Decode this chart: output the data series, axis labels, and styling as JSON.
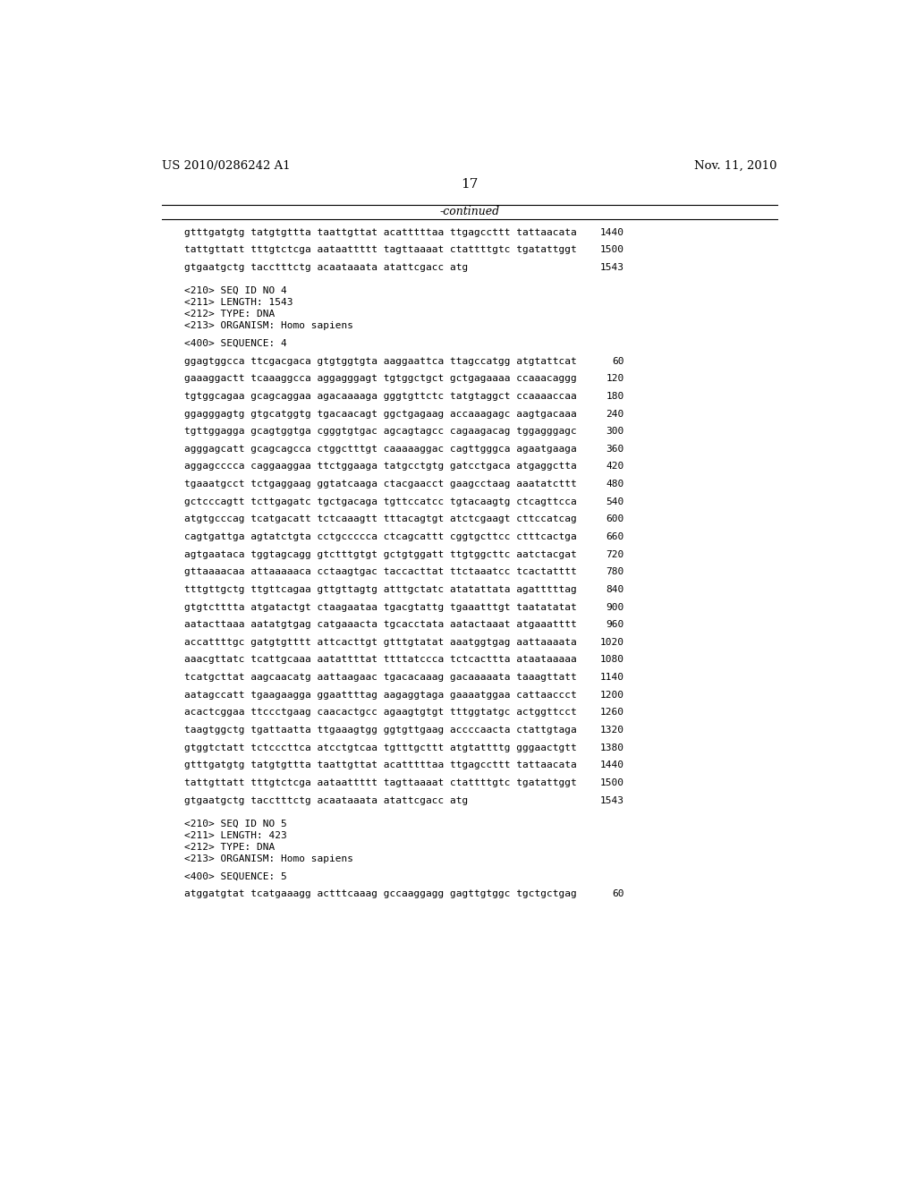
{
  "background_color": "#ffffff",
  "header_left": "US 2010/0286242 A1",
  "header_right": "Nov. 11, 2010",
  "page_number": "17",
  "continued_label": "-continued",
  "lines": [
    {
      "text": "gtttgatgtg tatgtgttta taattgttat acatttttaa ttgagccttt tattaacata",
      "num": "1440"
    },
    {
      "text": "",
      "num": ""
    },
    {
      "text": "tattgttatt tttgtctcga aataattttt tagttaaaat ctattttgtc tgatattggt",
      "num": "1500"
    },
    {
      "text": "",
      "num": ""
    },
    {
      "text": "gtgaatgctg tacctttctg acaataaata atattcgacc atg",
      "num": "1543"
    },
    {
      "text": "",
      "num": ""
    },
    {
      "text": "",
      "num": ""
    },
    {
      "text": "<210> SEQ ID NO 4",
      "num": ""
    },
    {
      "text": "<211> LENGTH: 1543",
      "num": ""
    },
    {
      "text": "<212> TYPE: DNA",
      "num": ""
    },
    {
      "text": "<213> ORGANISM: Homo sapiens",
      "num": ""
    },
    {
      "text": "",
      "num": ""
    },
    {
      "text": "<400> SEQUENCE: 4",
      "num": ""
    },
    {
      "text": "",
      "num": ""
    },
    {
      "text": "ggagtggcca ttcgacgaca gtgtggtgta aaggaattca ttagccatgg atgtattcat",
      "num": "60"
    },
    {
      "text": "",
      "num": ""
    },
    {
      "text": "gaaaggactt tcaaaggcca aggagggagt tgtggctgct gctgagaaaa ccaaacaggg",
      "num": "120"
    },
    {
      "text": "",
      "num": ""
    },
    {
      "text": "tgtggcagaa gcagcaggaa agacaaaaga gggtgttctc tatgtaggct ccaaaaccaa",
      "num": "180"
    },
    {
      "text": "",
      "num": ""
    },
    {
      "text": "ggagggagtg gtgcatggtg tgacaacagt ggctgagaag accaaagagc aagtgacaaa",
      "num": "240"
    },
    {
      "text": "",
      "num": ""
    },
    {
      "text": "tgttggagga gcagtggtga cgggtgtgac agcagtagcc cagaagacag tggagggagc",
      "num": "300"
    },
    {
      "text": "",
      "num": ""
    },
    {
      "text": "agggagcatt gcagcagcca ctggctttgt caaaaaggac cagttgggca agaatgaaga",
      "num": "360"
    },
    {
      "text": "",
      "num": ""
    },
    {
      "text": "aggagcccca caggaaggaa ttctggaaga tatgcctgtg gatcctgaca atgaggctta",
      "num": "420"
    },
    {
      "text": "",
      "num": ""
    },
    {
      "text": "tgaaatgcct tctgaggaag ggtatcaaga ctacgaacct gaagcctaag aaatatcttt",
      "num": "480"
    },
    {
      "text": "",
      "num": ""
    },
    {
      "text": "gctcccagtt tcttgagatc tgctgacaga tgttccatcc tgtacaagtg ctcagttcca",
      "num": "540"
    },
    {
      "text": "",
      "num": ""
    },
    {
      "text": "atgtgcccag tcatgacatt tctcaaagtt tttacagtgt atctcgaagt cttccatcag",
      "num": "600"
    },
    {
      "text": "",
      "num": ""
    },
    {
      "text": "cagtgattga agtatctgta cctgccccca ctcagcattt cggtgcttcc ctttcactga",
      "num": "660"
    },
    {
      "text": "",
      "num": ""
    },
    {
      "text": "agtgaataca tggtagcagg gtctttgtgt gctgtggatt ttgtggcttc aatctacgat",
      "num": "720"
    },
    {
      "text": "",
      "num": ""
    },
    {
      "text": "gttaaaacaa attaaaaaca cctaagtgac taccacttat ttctaaatcc tcactatttt",
      "num": "780"
    },
    {
      "text": "",
      "num": ""
    },
    {
      "text": "tttgttgctg ttgttcagaa gttgttagtg atttgctatc atatattata agatttttag",
      "num": "840"
    },
    {
      "text": "",
      "num": ""
    },
    {
      "text": "gtgtctttta atgatactgt ctaagaataa tgacgtattg tgaaatttgt taatatatat",
      "num": "900"
    },
    {
      "text": "",
      "num": ""
    },
    {
      "text": "aatacttaaa aatatgtgag catgaaacta tgcacctata aatactaaat atgaaatttt",
      "num": "960"
    },
    {
      "text": "",
      "num": ""
    },
    {
      "text": "accattttgc gatgtgtttt attcacttgt gtttgtatat aaatggtgag aattaaaata",
      "num": "1020"
    },
    {
      "text": "",
      "num": ""
    },
    {
      "text": "aaacgttatc tcattgcaaa aatattttat ttttatccca tctcacttta ataataaaaa",
      "num": "1080"
    },
    {
      "text": "",
      "num": ""
    },
    {
      "text": "tcatgcttat aagcaacatg aattaagaac tgacacaaag gacaaaaata taaagttatt",
      "num": "1140"
    },
    {
      "text": "",
      "num": ""
    },
    {
      "text": "aatagccatt tgaagaagga ggaattttag aagaggtaga gaaaatggaa cattaaccct",
      "num": "1200"
    },
    {
      "text": "",
      "num": ""
    },
    {
      "text": "acactcggaa ttccctgaag caacactgcc agaagtgtgt tttggtatgc actggttcct",
      "num": "1260"
    },
    {
      "text": "",
      "num": ""
    },
    {
      "text": "taagtggctg tgattaatta ttgaaagtgg ggtgttgaag accccaacta ctattgtaga",
      "num": "1320"
    },
    {
      "text": "",
      "num": ""
    },
    {
      "text": "gtggtctatt tctcccttca atcctgtcaa tgtttgcttt atgtattttg gggaactgtt",
      "num": "1380"
    },
    {
      "text": "",
      "num": ""
    },
    {
      "text": "gtttgatgtg tatgtgttta taattgttat acatttttaa ttgagccttt tattaacata",
      "num": "1440"
    },
    {
      "text": "",
      "num": ""
    },
    {
      "text": "tattgttatt tttgtctcga aataattttt tagttaaaat ctattttgtc tgatattggt",
      "num": "1500"
    },
    {
      "text": "",
      "num": ""
    },
    {
      "text": "gtgaatgctg tacctttctg acaataaata atattcgacc atg",
      "num": "1543"
    },
    {
      "text": "",
      "num": ""
    },
    {
      "text": "",
      "num": ""
    },
    {
      "text": "<210> SEQ ID NO 5",
      "num": ""
    },
    {
      "text": "<211> LENGTH: 423",
      "num": ""
    },
    {
      "text": "<212> TYPE: DNA",
      "num": ""
    },
    {
      "text": "<213> ORGANISM: Homo sapiens",
      "num": ""
    },
    {
      "text": "",
      "num": ""
    },
    {
      "text": "<400> SEQUENCE: 5",
      "num": ""
    },
    {
      "text": "",
      "num": ""
    },
    {
      "text": "atggatgtat tcatgaaagg actttcaaag gccaaggagg gagttgtggc tgctgctgag",
      "num": "60"
    }
  ]
}
